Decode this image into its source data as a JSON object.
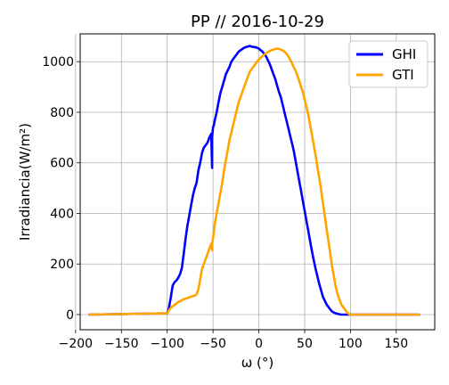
{
  "chart_data": {
    "type": "line",
    "title": "PP // 2016-10-29",
    "xlabel": "ω (°)",
    "ylabel": "Irradiancia(W/m²)",
    "xlim": [
      -195,
      192
    ],
    "ylim": [
      -60,
      1110
    ],
    "xticks": [
      -200,
      -150,
      -100,
      -50,
      0,
      50,
      100,
      150
    ],
    "xtick_labels": [
      "−200",
      "−150",
      "−100",
      "−50",
      "0",
      "50",
      "100",
      "150"
    ],
    "yticks": [
      0,
      200,
      400,
      600,
      800,
      1000
    ],
    "ytick_labels": [
      "0",
      "200",
      "400",
      "600",
      "800",
      "1000"
    ],
    "grid": true,
    "legend_position": "top-right",
    "series": [
      {
        "name": "GHI",
        "color": "#0000ff",
        "x": [
          -185,
          -100,
          -98,
          -96,
          -94,
          -92,
          -90,
          -88,
          -86,
          -84,
          -82,
          -80,
          -78,
          -76,
          -74,
          -72,
          -70,
          -68,
          -66,
          -64,
          -62,
          -60,
          -58,
          -56,
          -54,
          -52,
          -51,
          -51,
          -50,
          -49,
          -48,
          -46,
          -44,
          -42,
          -40,
          -38,
          -36,
          -34,
          -32,
          -30,
          -28,
          -26,
          -24,
          -22,
          -20,
          -18,
          -16,
          -14,
          -12,
          -10,
          -8,
          -6,
          -4,
          -2,
          0,
          2,
          4,
          6,
          8,
          10,
          12,
          14,
          16,
          18,
          20,
          22,
          24,
          26,
          28,
          30,
          32,
          34,
          36,
          38,
          40,
          42,
          44,
          46,
          48,
          50,
          52,
          54,
          56,
          58,
          60,
          62,
          64,
          66,
          68,
          70,
          72,
          74,
          76,
          78,
          80,
          82,
          84,
          86,
          88,
          90,
          92,
          94,
          96,
          98,
          100,
          175
        ],
        "y": [
          0,
          5,
          30,
          70,
          115,
          128,
          135,
          145,
          160,
          185,
          240,
          300,
          350,
          390,
          430,
          470,
          500,
          520,
          570,
          600,
          640,
          660,
          670,
          680,
          700,
          715,
          580,
          700,
          740,
          750,
          770,
          800,
          840,
          875,
          900,
          925,
          950,
          965,
          980,
          1000,
          1010,
          1020,
          1030,
          1040,
          1045,
          1050,
          1055,
          1058,
          1060,
          1062,
          1060,
          1058,
          1058,
          1055,
          1052,
          1045,
          1040,
          1030,
          1020,
          1005,
          990,
          970,
          950,
          930,
          905,
          880,
          860,
          830,
          800,
          770,
          740,
          710,
          680,
          650,
          610,
          570,
          530,
          490,
          450,
          410,
          370,
          330,
          290,
          250,
          215,
          180,
          150,
          120,
          95,
          70,
          55,
          40,
          30,
          20,
          12,
          8,
          5,
          3,
          1,
          0,
          0,
          0,
          0,
          0,
          0,
          0
        ]
      },
      {
        "name": "GTI",
        "color": "#ffa500",
        "x": [
          -185,
          -100,
          -98,
          -96,
          -94,
          -92,
          -90,
          -88,
          -86,
          -84,
          -82,
          -80,
          -78,
          -76,
          -74,
          -72,
          -70,
          -68,
          -66,
          -64,
          -62,
          -60,
          -58,
          -56,
          -54,
          -52,
          -51,
          -51,
          -50,
          -49,
          -48,
          -46,
          -44,
          -42,
          -40,
          -38,
          -36,
          -34,
          -32,
          -30,
          -28,
          -26,
          -24,
          -22,
          -20,
          -18,
          -16,
          -14,
          -12,
          -10,
          -8,
          -6,
          -4,
          -2,
          0,
          2,
          4,
          6,
          8,
          10,
          12,
          14,
          16,
          18,
          20,
          22,
          24,
          26,
          28,
          30,
          32,
          34,
          36,
          38,
          40,
          42,
          44,
          46,
          48,
          50,
          52,
          54,
          56,
          58,
          60,
          62,
          64,
          66,
          68,
          70,
          72,
          74,
          76,
          78,
          80,
          82,
          84,
          86,
          88,
          90,
          92,
          94,
          96,
          98,
          100,
          175
        ],
        "y": [
          0,
          5,
          18,
          27,
          33,
          38,
          44,
          49,
          53,
          57,
          60,
          63,
          65,
          68,
          71,
          73,
          75,
          80,
          100,
          140,
          180,
          200,
          220,
          240,
          260,
          280,
          255,
          280,
          300,
          330,
          360,
          400,
          440,
          480,
          520,
          570,
          610,
          650,
          690,
          720,
          750,
          780,
          810,
          840,
          860,
          880,
          900,
          920,
          940,
          960,
          970,
          980,
          990,
          1000,
          1008,
          1015,
          1022,
          1028,
          1034,
          1038,
          1042,
          1046,
          1048,
          1050,
          1052,
          1050,
          1048,
          1044,
          1040,
          1032,
          1022,
          1010,
          995,
          980,
          965,
          945,
          925,
          900,
          880,
          850,
          820,
          790,
          750,
          710,
          670,
          630,
          580,
          540,
          490,
          440,
          390,
          340,
          290,
          240,
          190,
          150,
          110,
          80,
          60,
          40,
          30,
          20,
          10,
          3,
          0,
          0
        ]
      }
    ]
  }
}
